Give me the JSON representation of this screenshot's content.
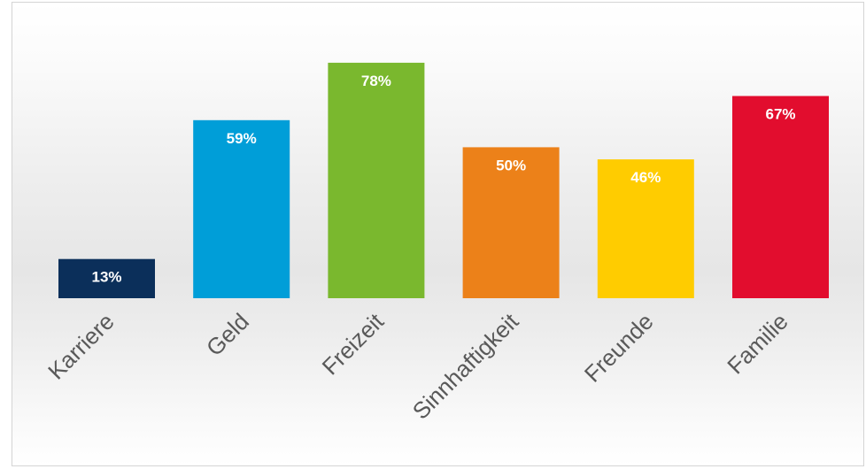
{
  "chart_data": {
    "type": "bar",
    "title": "",
    "xlabel": "",
    "ylabel": "",
    "ylim": [
      0,
      100
    ],
    "grid": false,
    "categories": [
      "Karriere",
      "Geld",
      "Freizeit",
      "Sinnhaftigkeit",
      "Freunde",
      "Familie"
    ],
    "values": [
      13,
      59,
      78,
      50,
      46,
      67
    ],
    "value_labels": [
      "13%",
      "59%",
      "78%",
      "50%",
      "46%",
      "67%"
    ],
    "bar_colors": [
      "#0b2f5a",
      "#009ed8",
      "#7ab82e",
      "#ec8119",
      "#ffcc00",
      "#e20d2e"
    ],
    "label_color": "#ffffff",
    "category_label_color": "#595959"
  }
}
